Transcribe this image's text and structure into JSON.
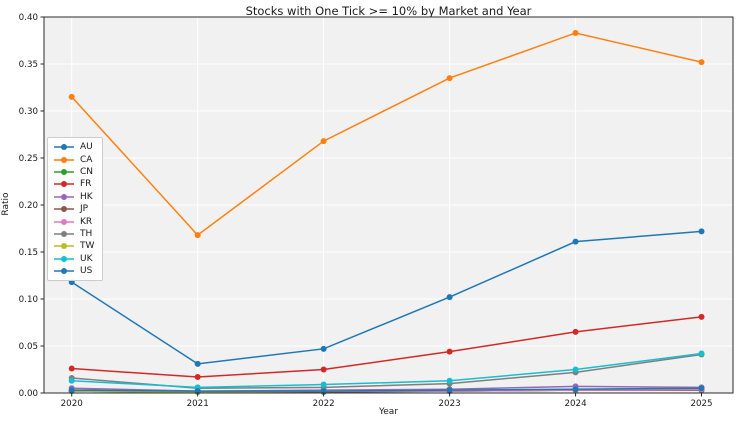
{
  "chart_data": {
    "type": "line",
    "title": "Stocks with One Tick >= 10% by Market and Year",
    "xlabel": "Year",
    "ylabel": "Ratio",
    "x": [
      2020,
      2021,
      2022,
      2023,
      2024,
      2025
    ],
    "xtick_labels": [
      "2020",
      "2021",
      "2022",
      "2023",
      "2024",
      "2025"
    ],
    "xlim": [
      2019.78,
      2025.25
    ],
    "ylim": [
      0,
      0.4
    ],
    "yticks": [
      0.0,
      0.05,
      0.1,
      0.15,
      0.2,
      0.25,
      0.3,
      0.35,
      0.4
    ],
    "ytick_labels": [
      "0.00",
      "0.05",
      "0.10",
      "0.15",
      "0.20",
      "0.25",
      "0.30",
      "0.35",
      "0.40"
    ],
    "grid": true,
    "plot_bg": "#f1f1f1",
    "grid_color": "#ffffff",
    "legend_position": "center-left",
    "series": [
      {
        "name": "AU",
        "color": "#1f77b4",
        "values": [
          0.118,
          0.031,
          0.047,
          0.102,
          0.161,
          0.172
        ]
      },
      {
        "name": "CA",
        "color": "#ff7f0e",
        "values": [
          0.315,
          0.168,
          0.268,
          0.335,
          0.383,
          0.352
        ]
      },
      {
        "name": "CN",
        "color": "#2ca02c",
        "values": [
          0.002,
          0.001,
          0.002,
          0.002,
          0.003,
          0.004
        ]
      },
      {
        "name": "FR",
        "color": "#d62728",
        "values": [
          0.026,
          0.017,
          0.025,
          0.044,
          0.065,
          0.081
        ]
      },
      {
        "name": "HK",
        "color": "#9467bd",
        "values": [
          0.005,
          0.002,
          0.003,
          0.004,
          0.007,
          0.006
        ]
      },
      {
        "name": "JP",
        "color": "#8c564b",
        "values": [
          0.002,
          0.001,
          0.001,
          0.002,
          0.003,
          0.003
        ]
      },
      {
        "name": "KR",
        "color": "#e377c2",
        "values": [
          0.003,
          0.001,
          0.002,
          0.002,
          0.003,
          0.004
        ]
      },
      {
        "name": "TH",
        "color": "#7f7f7f",
        "values": [
          0.016,
          0.005,
          0.006,
          0.01,
          0.022,
          0.041
        ]
      },
      {
        "name": "TW",
        "color": "#bcbd22",
        "values": [
          0.002,
          0.001,
          0.002,
          0.003,
          0.004,
          0.005
        ]
      },
      {
        "name": "UK",
        "color": "#17becf",
        "values": [
          0.013,
          0.006,
          0.009,
          0.013,
          0.025,
          0.042
        ]
      },
      {
        "name": "US",
        "color": "#1f77b4",
        "values": [
          0.003,
          0.002,
          0.002,
          0.003,
          0.004,
          0.005
        ]
      }
    ]
  }
}
